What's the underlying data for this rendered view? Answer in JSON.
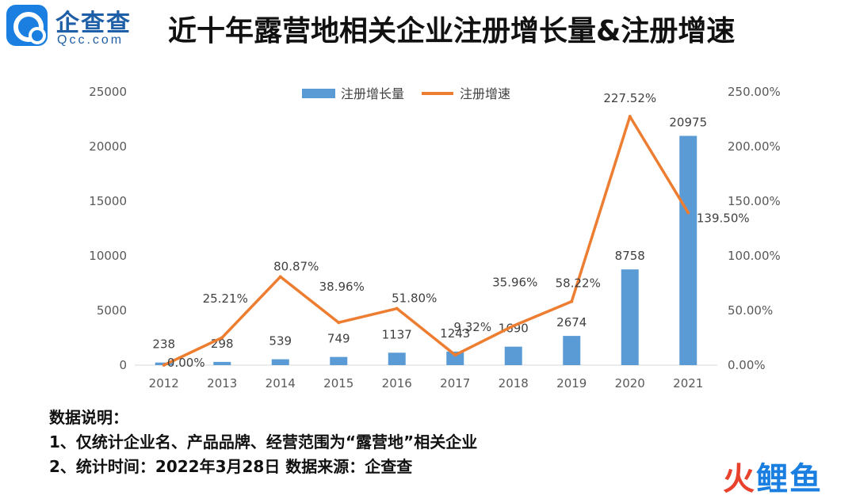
{
  "header": {
    "logo_cn": "企查查",
    "logo_en": "Qcc.com",
    "title": "近十年露营地相关企业注册增长量&注册增速"
  },
  "colors": {
    "bar": "#5b9bd5",
    "line": "#ed7d31",
    "brand": "#1a7fe0"
  },
  "chart_data": {
    "type": "bar",
    "categories": [
      "2012",
      "2013",
      "2014",
      "2015",
      "2016",
      "2017",
      "2018",
      "2019",
      "2020",
      "2021"
    ],
    "series": [
      {
        "name": "注册增长量",
        "type": "bar",
        "axis": "left",
        "values": [
          238,
          298,
          539,
          749,
          1137,
          1243,
          1690,
          2674,
          8758,
          20975
        ],
        "labels": [
          "238",
          "298",
          "539",
          "749",
          "1137",
          "1243",
          "1690",
          "2674",
          "8758",
          "20975"
        ]
      },
      {
        "name": "注册增速",
        "type": "line",
        "axis": "right",
        "values": [
          0.0,
          25.21,
          80.87,
          38.96,
          51.8,
          9.32,
          35.96,
          58.22,
          227.52,
          139.5
        ],
        "labels": [
          "0.00%",
          "25.21%",
          "80.87%",
          "38.96%",
          "51.80%",
          "9.32%",
          "35.96%",
          "58.22%",
          "227.52%",
          "139.50%"
        ]
      }
    ],
    "y_left": {
      "ylim": [
        0,
        25000
      ],
      "ticks": [
        "0",
        "5000",
        "10000",
        "15000",
        "20000",
        "25000"
      ]
    },
    "y_right": {
      "ylim": [
        0,
        250
      ],
      "ticks": [
        "0.00%",
        "50.00%",
        "100.00%",
        "150.00%",
        "200.00%",
        "250.00%"
      ]
    },
    "legend": "top-center",
    "grid": false
  },
  "notes": {
    "heading": "数据说明：",
    "line1": "1、仅统计企业名、产品品牌、经营范围为“露营地”相关企业",
    "line2": "2、统计时间：2022年3月28日    数据来源：企查查"
  },
  "watermark": {
    "char1": "火",
    "rest": "鲤鱼"
  }
}
